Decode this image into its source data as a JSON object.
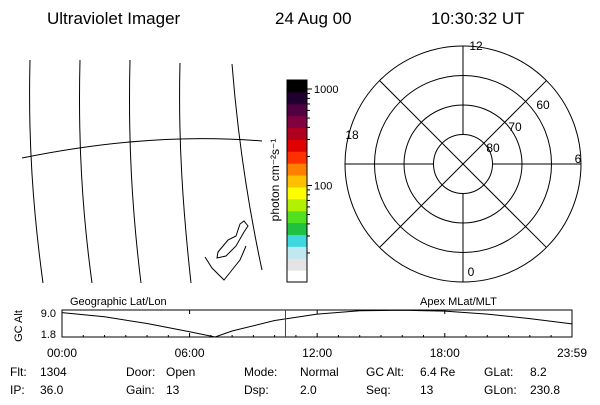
{
  "header": {
    "instrument": "Ultraviolet Imager",
    "date": "24 Aug 00",
    "time": "10:30:32 UT"
  },
  "colorbar": {
    "label": "photon cm⁻²s⁻¹",
    "ticks": [
      {
        "value": 1000,
        "label": "1000"
      },
      {
        "value": 100,
        "label": "100"
      }
    ],
    "colors": [
      "#ffffff",
      "#e4e4e4",
      "#bfe8f0",
      "#40d8e0",
      "#20c040",
      "#50e020",
      "#b0f000",
      "#ffff00",
      "#ffc000",
      "#ff8000",
      "#ff3000",
      "#e00000",
      "#b00020",
      "#800040",
      "#500040",
      "#200030",
      "#000000"
    ]
  },
  "polar_plot": {
    "mlt_labels": [
      {
        "mlt": 12,
        "label": "12"
      },
      {
        "mlt": 18,
        "label": "18"
      },
      {
        "mlt": 6,
        "label": "6"
      },
      {
        "mlt": 0,
        "label": "0"
      }
    ],
    "lat_rings": [
      {
        "lat": 60,
        "label": "60"
      },
      {
        "lat": 70,
        "label": "70"
      },
      {
        "lat": 80,
        "label": "80"
      }
    ]
  },
  "timeline": {
    "left_title": "Geographic Lat/Lon",
    "right_title": "Apex MLat/MLT",
    "ylabel": "GC Alt",
    "y_ticks": [
      "9.0",
      "1.8"
    ],
    "x_ticks": [
      "00:00",
      "06:00",
      "12:00",
      "18:00",
      "23:59"
    ]
  },
  "chart_data": {
    "type": "line",
    "title": "",
    "xlabel": "",
    "ylabel": "GC Alt",
    "xlim": [
      0,
      23.983
    ],
    "ylim": [
      1.8,
      9.0
    ],
    "series": [
      {
        "x": [
          0,
          2,
          4,
          6,
          7.2,
          8,
          10,
          12,
          14,
          16,
          18,
          20,
          22,
          23.983
        ],
        "y": [
          8.3,
          7.2,
          5.4,
          3.2,
          1.8,
          3.4,
          6.2,
          7.9,
          8.8,
          8.95,
          8.7,
          7.9,
          6.7,
          5.3
        ]
      }
    ],
    "markers": [
      {
        "x": 10.509,
        "label": "current time",
        "color": "#e00000"
      }
    ]
  },
  "footer": {
    "rows": [
      [
        {
          "label": "Flt:",
          "value": "1304"
        },
        {
          "label": "Door:",
          "value": "Open"
        },
        {
          "label": "Mode:",
          "value": "Normal"
        },
        {
          "label": "GC Alt:",
          "value": "6.4 Re"
        },
        {
          "label": "GLat:",
          "value": "8.2"
        }
      ],
      [
        {
          "label": "IP:",
          "value": "36.0"
        },
        {
          "label": "Gain:",
          "value": "13"
        },
        {
          "label": "Dsp:",
          "value": "2.0"
        },
        {
          "label": "Seq:",
          "value": "13"
        },
        {
          "label": "GLon:",
          "value": "230.8"
        }
      ]
    ]
  }
}
